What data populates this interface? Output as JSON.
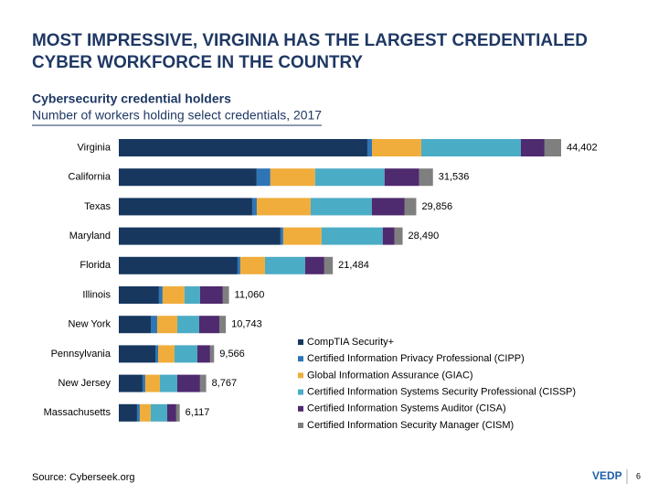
{
  "chart_data": {
    "type": "stacked-bar-horizontal",
    "title": [
      "MOST IMPRESSIVE, VIRGINIA HAS THE LARGEST CREDENTIALED",
      "CYBER WORKFORCE IN THE COUNTRY"
    ],
    "subtitle": "Cybersecurity credential holders",
    "caption": "Number of workers holding select credentials, 2017",
    "categories": [
      "Virginia",
      "California",
      "Texas",
      "Maryland",
      "Florida",
      "Illinois",
      "New York",
      "Pennsylvania",
      "New Jersey",
      "Massachusetts"
    ],
    "series": [
      {
        "name": "CompTIA Security+",
        "color": "#17375e",
        "values": [
          24950,
          13840,
          13390,
          16230,
          11920,
          4030,
          3210,
          3670,
          2380,
          1830
        ]
      },
      {
        "name": "Certified Information Privacy Professional (CIPP)",
        "color": "#2e75b6",
        "values": [
          460,
          1375,
          460,
          275,
          275,
          365,
          640,
          275,
          275,
          275
        ]
      },
      {
        "name": "Global Information Assurance (GIAC)",
        "color": "#f0ad3c",
        "values": [
          4950,
          4490,
          5410,
          3850,
          2480,
          2200,
          2020,
          1650,
          1470,
          1100
        ]
      },
      {
        "name": "Certified Information Systems Security Professional (CISSP)",
        "color": "#4bacc6",
        "values": [
          10000,
          6970,
          6140,
          6140,
          4030,
          1560,
          2200,
          2290,
          1740,
          1650
        ]
      },
      {
        "name": "Certified Information Systems Auditor (CISA)",
        "color": "#4e2a6e",
        "values": [
          2380,
          3485,
          3300,
          1190,
          1925,
          2290,
          2020,
          1280,
          2290,
          915
        ]
      },
      {
        "name": "Certified Information Security Manager (CISM)",
        "color": "#7f7f7f",
        "values": [
          1662,
          1376,
          1156,
          805,
          854,
          615,
          653,
          401,
          612,
          347
        ]
      }
    ],
    "totals": [
      44402,
      31536,
      29856,
      28490,
      21484,
      11060,
      10743,
      9566,
      8767,
      6117
    ],
    "total_labels": [
      "44,402",
      "31,536",
      "29,856",
      "28,490",
      "21,484",
      "11,060",
      "10,743",
      "9,566",
      "8,767",
      "6,117"
    ],
    "source": "Source: Cyberseek.org"
  },
  "footer": {
    "logo": "VEDP",
    "page_number": "6"
  }
}
